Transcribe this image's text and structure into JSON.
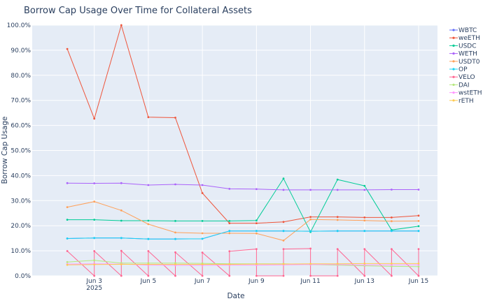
{
  "chart_data": {
    "type": "line",
    "title": "Borrow Cap Usage Over Time for Collateral Assets",
    "xlabel": "Date",
    "ylabel": "Borrow Cap Usage",
    "x_range": [
      "2025-06-01",
      "2025-06-15"
    ],
    "ylim": [
      0,
      1
    ],
    "y_ticks": [
      {
        "value": 0.0,
        "label": "0.0%"
      },
      {
        "value": 0.1,
        "label": "10.0%"
      },
      {
        "value": 0.2,
        "label": "20.0%"
      },
      {
        "value": 0.3,
        "label": "30.0%"
      },
      {
        "value": 0.4,
        "label": "40.0%"
      },
      {
        "value": 0.5,
        "label": "50.0%"
      },
      {
        "value": 0.6,
        "label": "60.0%"
      },
      {
        "value": 0.7,
        "label": "70.0%"
      },
      {
        "value": 0.8,
        "label": "80.0%"
      },
      {
        "value": 0.9,
        "label": "90.0%"
      },
      {
        "value": 1.0,
        "label": "100.0%"
      }
    ],
    "x_ticks": [
      {
        "date": "2025-06-03",
        "label": "Jun 3",
        "sublabel": "2025"
      },
      {
        "date": "2025-06-05",
        "label": "Jun 5",
        "sublabel": ""
      },
      {
        "date": "2025-06-07",
        "label": "Jun 7",
        "sublabel": ""
      },
      {
        "date": "2025-06-09",
        "label": "Jun 9",
        "sublabel": ""
      },
      {
        "date": "2025-06-11",
        "label": "Jun 11",
        "sublabel": ""
      },
      {
        "date": "2025-06-13",
        "label": "Jun 13",
        "sublabel": ""
      },
      {
        "date": "2025-06-15",
        "label": "Jun 15",
        "sublabel": ""
      }
    ],
    "grid": true,
    "legend_position": "right",
    "series": [
      {
        "name": "WBTC",
        "color": "#636efa",
        "points": [
          [
            "2025-06-02",
            0.149
          ],
          [
            "2025-06-03",
            0.151
          ],
          [
            "2025-06-04",
            0.151
          ],
          [
            "2025-06-05",
            0.147
          ],
          [
            "2025-06-06",
            0.147
          ],
          [
            "2025-06-07",
            0.148
          ],
          [
            "2025-06-08",
            0.179
          ],
          [
            "2025-06-09",
            0.179
          ],
          [
            "2025-06-10",
            0.179
          ],
          [
            "2025-06-11",
            0.178
          ],
          [
            "2025-06-12",
            0.179
          ],
          [
            "2025-06-13",
            0.179
          ],
          [
            "2025-06-14",
            0.179
          ],
          [
            "2025-06-15",
            0.179
          ]
        ]
      },
      {
        "name": "weETH",
        "color": "#EF553B",
        "points": [
          [
            "2025-06-02",
            0.905
          ],
          [
            "2025-06-03",
            0.627
          ],
          [
            "2025-06-04",
            1.0
          ],
          [
            "2025-06-05",
            0.633
          ],
          [
            "2025-06-06",
            0.631
          ],
          [
            "2025-06-07",
            0.33
          ],
          [
            "2025-06-08",
            0.21
          ],
          [
            "2025-06-09",
            0.21
          ],
          [
            "2025-06-10",
            0.215
          ],
          [
            "2025-06-11",
            0.235
          ],
          [
            "2025-06-12",
            0.235
          ],
          [
            "2025-06-13",
            0.233
          ],
          [
            "2025-06-14",
            0.233
          ],
          [
            "2025-06-15",
            0.24
          ]
        ]
      },
      {
        "name": "USDC",
        "color": "#00cc96",
        "points": [
          [
            "2025-06-02",
            0.224
          ],
          [
            "2025-06-03",
            0.224
          ],
          [
            "2025-06-04",
            0.22
          ],
          [
            "2025-06-05",
            0.22
          ],
          [
            "2025-06-06",
            0.219
          ],
          [
            "2025-06-07",
            0.219
          ],
          [
            "2025-06-08",
            0.219
          ],
          [
            "2025-06-09",
            0.221
          ],
          [
            "2025-06-10",
            0.388
          ],
          [
            "2025-06-11",
            0.175
          ],
          [
            "2025-06-12",
            0.384
          ],
          [
            "2025-06-13",
            0.359
          ],
          [
            "2025-06-14",
            0.183
          ],
          [
            "2025-06-15",
            0.198
          ]
        ]
      },
      {
        "name": "WETH",
        "color": "#ab63fa",
        "points": [
          [
            "2025-06-02",
            0.37
          ],
          [
            "2025-06-03",
            0.369
          ],
          [
            "2025-06-04",
            0.37
          ],
          [
            "2025-06-05",
            0.362
          ],
          [
            "2025-06-06",
            0.365
          ],
          [
            "2025-06-07",
            0.362
          ],
          [
            "2025-06-08",
            0.347
          ],
          [
            "2025-06-09",
            0.346
          ],
          [
            "2025-06-10",
            0.343
          ],
          [
            "2025-06-11",
            0.343
          ],
          [
            "2025-06-12",
            0.343
          ],
          [
            "2025-06-13",
            0.343
          ],
          [
            "2025-06-14",
            0.344
          ],
          [
            "2025-06-15",
            0.344
          ]
        ]
      },
      {
        "name": "USDT0",
        "color": "#FFA15A",
        "points": [
          [
            "2025-06-02",
            0.274
          ],
          [
            "2025-06-03",
            0.296
          ],
          [
            "2025-06-04",
            0.261
          ],
          [
            "2025-06-05",
            0.206
          ],
          [
            "2025-06-06",
            0.173
          ],
          [
            "2025-06-07",
            0.17
          ],
          [
            "2025-06-08",
            0.17
          ],
          [
            "2025-06-09",
            0.169
          ],
          [
            "2025-06-10",
            0.141
          ],
          [
            "2025-06-11",
            0.225
          ],
          [
            "2025-06-12",
            0.223
          ],
          [
            "2025-06-13",
            0.221
          ],
          [
            "2025-06-14",
            0.218
          ],
          [
            "2025-06-15",
            0.219
          ]
        ]
      },
      {
        "name": "OP",
        "color": "#19d3f3",
        "points": [
          [
            "2025-06-02",
            0.149
          ],
          [
            "2025-06-03",
            0.151
          ],
          [
            "2025-06-04",
            0.151
          ],
          [
            "2025-06-05",
            0.147
          ],
          [
            "2025-06-06",
            0.147
          ],
          [
            "2025-06-07",
            0.148
          ],
          [
            "2025-06-08",
            0.179
          ],
          [
            "2025-06-09",
            0.179
          ],
          [
            "2025-06-10",
            0.179
          ],
          [
            "2025-06-11",
            0.178
          ],
          [
            "2025-06-12",
            0.179
          ],
          [
            "2025-06-13",
            0.179
          ],
          [
            "2025-06-14",
            0.179
          ],
          [
            "2025-06-15",
            0.179
          ]
        ]
      },
      {
        "name": "VELO",
        "color": "#FF6692",
        "points": [
          [
            "2025-06-02",
            0.099
          ],
          [
            "2025-06-03",
            0.0
          ],
          [
            "2025-06-03",
            0.099
          ],
          [
            "2025-06-04",
            0.0
          ],
          [
            "2025-06-04",
            0.1
          ],
          [
            "2025-06-05",
            0.0
          ],
          [
            "2025-06-05",
            0.099
          ],
          [
            "2025-06-06",
            0.0
          ],
          [
            "2025-06-06",
            0.094
          ],
          [
            "2025-06-07",
            0.0
          ],
          [
            "2025-06-07",
            0.093
          ],
          [
            "2025-06-08",
            0.0
          ],
          [
            "2025-06-08",
            0.098
          ],
          [
            "2025-06-09",
            0.107
          ],
          [
            "2025-06-09",
            0.0
          ],
          [
            "2025-06-10",
            0.0
          ],
          [
            "2025-06-10",
            0.107
          ],
          [
            "2025-06-11",
            0.109
          ],
          [
            "2025-06-11",
            0.0
          ],
          [
            "2025-06-12",
            0.0
          ],
          [
            "2025-06-12",
            0.107
          ],
          [
            "2025-06-13",
            0.0
          ],
          [
            "2025-06-13",
            0.107
          ],
          [
            "2025-06-14",
            0.0
          ],
          [
            "2025-06-14",
            0.107
          ],
          [
            "2025-06-15",
            0.0
          ],
          [
            "2025-06-15",
            0.107
          ]
        ]
      },
      {
        "name": "DAI",
        "color": "#B6E880",
        "points": [
          [
            "2025-06-02",
            0.055
          ],
          [
            "2025-06-03",
            0.062
          ],
          [
            "2025-06-04",
            0.051
          ],
          [
            "2025-06-05",
            0.051
          ],
          [
            "2025-06-06",
            0.051
          ],
          [
            "2025-06-07",
            0.05
          ],
          [
            "2025-06-08",
            0.048
          ],
          [
            "2025-06-09",
            0.048
          ],
          [
            "2025-06-10",
            0.048
          ],
          [
            "2025-06-11",
            0.045
          ],
          [
            "2025-06-12",
            0.043
          ],
          [
            "2025-06-13",
            0.04
          ],
          [
            "2025-06-14",
            0.038
          ],
          [
            "2025-06-15",
            0.037
          ]
        ]
      },
      {
        "name": "wstETH",
        "color": "#FF97FF",
        "points": [
          [
            "2025-06-02",
            0.047
          ],
          [
            "2025-06-03",
            0.048
          ],
          [
            "2025-06-04",
            0.047
          ],
          [
            "2025-06-05",
            0.043
          ],
          [
            "2025-06-06",
            0.042
          ],
          [
            "2025-06-07",
            0.042
          ],
          [
            "2025-06-08",
            0.043
          ],
          [
            "2025-06-09",
            0.043
          ],
          [
            "2025-06-10",
            0.044
          ],
          [
            "2025-06-11",
            0.045
          ],
          [
            "2025-06-12",
            0.045
          ],
          [
            "2025-06-13",
            0.044
          ],
          [
            "2025-06-14",
            0.044
          ],
          [
            "2025-06-15",
            0.044
          ]
        ]
      },
      {
        "name": "rETH",
        "color": "#FECB52",
        "points": [
          [
            "2025-06-02",
            0.044
          ],
          [
            "2025-06-03",
            0.045
          ],
          [
            "2025-06-04",
            0.046
          ],
          [
            "2025-06-05",
            0.046
          ],
          [
            "2025-06-06",
            0.046
          ],
          [
            "2025-06-07",
            0.046
          ],
          [
            "2025-06-08",
            0.046
          ],
          [
            "2025-06-09",
            0.047
          ],
          [
            "2025-06-10",
            0.047
          ],
          [
            "2025-06-11",
            0.048
          ],
          [
            "2025-06-12",
            0.048
          ],
          [
            "2025-06-13",
            0.049
          ],
          [
            "2025-06-14",
            0.049
          ],
          [
            "2025-06-15",
            0.049
          ]
        ]
      }
    ]
  }
}
